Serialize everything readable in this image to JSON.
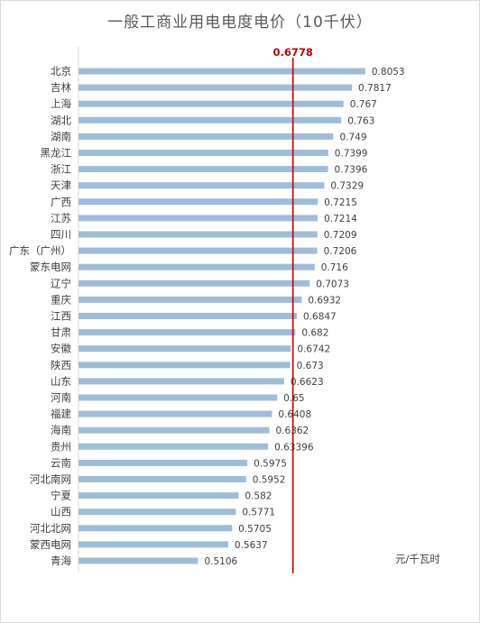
{
  "chart_data": {
    "type": "bar",
    "orientation": "horizontal",
    "title": "一般工商业用电电度电价（10千伏）",
    "unit_label": "元/千瓦时",
    "reference_line": {
      "value": 0.6778,
      "label": "0.6778",
      "color": "#c00000"
    },
    "bar_color": "#9fbcdb",
    "xlim": [
      0.3,
      0.85
    ],
    "categories": [
      "北京",
      "吉林",
      "上海",
      "湖北",
      "湖南",
      "黑龙江",
      "浙江",
      "天津",
      "广西",
      "江苏",
      "四川",
      "广东（广州）",
      "蒙东电网",
      "辽宁",
      "重庆",
      "江西",
      "甘肃",
      "安徽",
      "陕西",
      "山东",
      "河南",
      "福建",
      "海南",
      "贵州",
      "云南",
      "河北南网",
      "宁夏",
      "山西",
      "河北北网",
      "蒙西电网",
      "青海"
    ],
    "values": [
      0.8053,
      0.7817,
      0.767,
      0.763,
      0.749,
      0.7399,
      0.7396,
      0.7329,
      0.7215,
      0.7214,
      0.7209,
      0.7206,
      0.716,
      0.7073,
      0.6932,
      0.6847,
      0.682,
      0.6742,
      0.673,
      0.6623,
      0.65,
      0.6408,
      0.6362,
      0.63396,
      0.5975,
      0.5952,
      0.582,
      0.5771,
      0.5705,
      0.5637,
      0.5106
    ],
    "value_labels": [
      "0.8053",
      "0.7817",
      "0.767",
      "0.763",
      "0.749",
      "0.7399",
      "0.7396",
      "0.7329",
      "0.7215",
      "0.7214",
      "0.7209",
      "0.7206",
      "0.716",
      "0.7073",
      "0.6932",
      "0.6847",
      "0.682",
      "0.6742",
      "0.673",
      "0.6623",
      "0.65",
      "0.6408",
      "0.6362",
      "0.63396",
      "0.5975",
      "0.5952",
      "0.582",
      "0.5771",
      "0.5705",
      "0.5637",
      "0.5106"
    ]
  }
}
